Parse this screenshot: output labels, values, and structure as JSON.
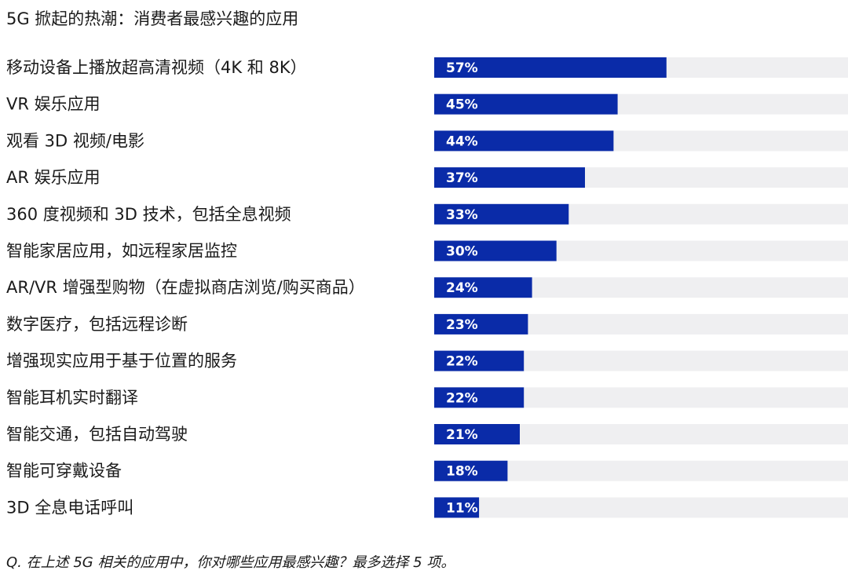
{
  "chart_data": {
    "type": "bar",
    "orientation": "horizontal",
    "title": "5G 掀起的热潮：消费者最感兴趣的应用",
    "categories": [
      "移动设备上播放超高清视频（4K 和 8K）",
      "VR 娱乐应用",
      "观看 3D 视频/电影",
      "AR 娱乐应用",
      "360 度视频和 3D 技术，包括全息视频",
      "智能家居应用，如远程家居监控",
      "AR/VR 增强型购物（在虚拟商店浏览/购买商品）",
      "数字医疗，包括远程诊断",
      "增强现实应用于基于位置的服务",
      "智能耳机实时翻译",
      "智能交通，包括自动驾驶",
      "智能可穿戴设备",
      "3D 全息电话呼叫"
    ],
    "values": [
      57,
      45,
      44,
      37,
      33,
      30,
      24,
      23,
      22,
      22,
      21,
      18,
      11
    ],
    "value_labels": [
      "57%",
      "45%",
      "44%",
      "37%",
      "33%",
      "30%",
      "24%",
      "23%",
      "22%",
      "22%",
      "21%",
      "18%",
      "11%"
    ],
    "unit": "%",
    "xlim": [
      0,
      100
    ],
    "grid": false,
    "legend": "none",
    "colors": {
      "bar": "#0a2ba8",
      "track": "#efeff1",
      "bar_label": "#ffffff"
    }
  },
  "footnote": "Q. 在上述 5G 相关的应用中，你对哪些应用最感兴趣？最多选择 5 项。"
}
